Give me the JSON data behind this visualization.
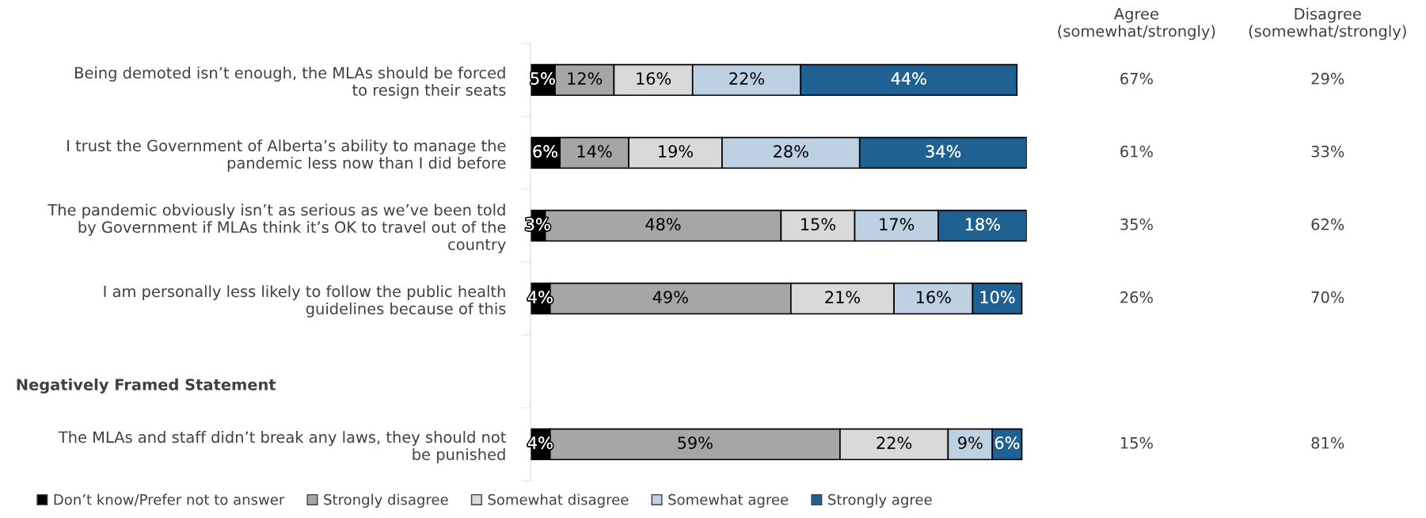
{
  "chart_data": [
    {
      "type": "bar",
      "orientation": "horizontal",
      "stacked": true,
      "categories": [
        "Being demoted isn’t enough, the MLAs should be forced\nto resign their seats",
        "I trust the Government of Alberta’s ability to manage the\npandemic less now than I did before",
        "The pandemic obviously isn’t as serious as we’ve been told\nby Government if MLAs think it’s OK to travel out of the\ncountry",
        "I am personally less likely to follow the public health\nguidelines because of this",
        null,
        "The MLAs and staff didn’t break any laws, they should not\nbe punished"
      ],
      "xlim": [
        0,
        101
      ],
      "legend": "bottom",
      "tick_labels": "y",
      "annotations": [
        "Negatively Framed Statement"
      ],
      "series": [
        {
          "name": "Don’t know/Prefer not to answer",
          "color": "#000000",
          "values": [
            5,
            6,
            3,
            4,
            null,
            4
          ],
          "value_labels": [
            "5%",
            "6%",
            "3%",
            "4%",
            null,
            "4%"
          ]
        },
        {
          "name": "Strongly disagree",
          "color": "#a6a6a6",
          "values": [
            12,
            14,
            48,
            49,
            null,
            59
          ],
          "value_labels": [
            "12%",
            "14%",
            "48%",
            "49%",
            null,
            "59%"
          ]
        },
        {
          "name": "Somewhat disagree",
          "color": "#d9d9d9",
          "values": [
            16,
            19,
            15,
            21,
            null,
            22
          ],
          "value_labels": [
            "16%",
            "19%",
            "15%",
            "21%",
            null,
            "22%"
          ]
        },
        {
          "name": "Somewhat agree",
          "color": "#bdd1e3",
          "values": [
            22,
            28,
            17,
            16,
            null,
            9
          ],
          "value_labels": [
            "22%",
            "28%",
            "17%",
            "16%",
            null,
            "9%"
          ]
        },
        {
          "name": "Strongly agree",
          "color": "#1f6193",
          "values": [
            44,
            34,
            18,
            10,
            null,
            6
          ],
          "value_labels": [
            "44%",
            "34%",
            "18%",
            "10%",
            null,
            "6%"
          ]
        }
      ]
    },
    {
      "type": "other",
      "categories": [
        "Agree\n(somewhat/strongly)",
        "Disagree\n(somewhat/strongly)"
      ],
      "cell_labels": [
        [
          "67%",
          "29%"
        ],
        [
          "61%",
          "33%"
        ],
        [
          "35%",
          "62%"
        ],
        [
          "26%",
          "70%"
        ],
        [
          null,
          null
        ],
        [
          "15%",
          "81%"
        ]
      ]
    }
  ]
}
